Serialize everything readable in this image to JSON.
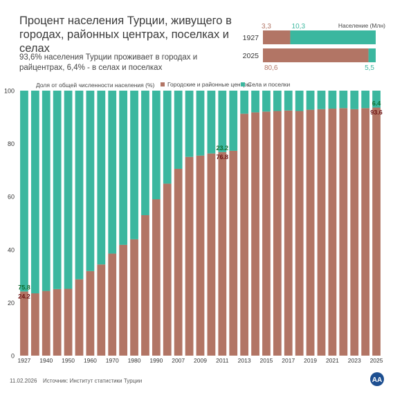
{
  "title": "Процент населения Турции, живущего в городах, районных центрах, поселках и селах",
  "subtitle": "93,6% населения Турции проживает в городах и райцентрах, 6,4% - в селах и поселках",
  "colors": {
    "urban": "#b27565",
    "rural": "#3bb79f"
  },
  "inset": {
    "unit_label": "Население (Млн)",
    "rows": [
      {
        "year": "1927",
        "urban_label": "3,3",
        "rural_label": "10,3",
        "urban": 3.3,
        "rural": 10.3
      },
      {
        "year": "2025",
        "urban_label": "80,6",
        "rural_label": "5,5",
        "urban": 80.6,
        "rural": 5.5
      }
    ]
  },
  "chart_data": {
    "type": "bar",
    "stacked": true,
    "ylabel": "Доля от общей численности населения (%)",
    "ylim": [
      0,
      100
    ],
    "yticks": [
      0,
      20,
      40,
      60,
      80,
      100
    ],
    "categories": [
      "1927",
      "1935",
      "1940",
      "1945",
      "1950",
      "1955",
      "1960",
      "1965",
      "1970",
      "1975",
      "1980",
      "1985",
      "1990",
      "2000",
      "2007",
      "2008",
      "2009",
      "2010",
      "2011",
      "2012",
      "2013",
      "2014",
      "2015",
      "2016",
      "2017",
      "2018",
      "2019",
      "2020",
      "2021",
      "2022",
      "2023",
      "2024",
      "2025"
    ],
    "x_tick_labels": [
      "1927",
      "1940",
      "1950",
      "1960",
      "1970",
      "1980",
      "1990",
      "2007",
      "2009",
      "2011",
      "2013",
      "2015",
      "2017",
      "2019",
      "2021",
      "2023",
      "2025"
    ],
    "series": [
      {
        "name": "Городские и районные центры",
        "values": [
          24.2,
          23.5,
          24.4,
          25.1,
          25.2,
          28.8,
          31.9,
          34.4,
          38.5,
          41.8,
          43.9,
          53.0,
          59.0,
          64.9,
          70.5,
          75.0,
          75.5,
          76.3,
          76.8,
          77.3,
          91.3,
          91.8,
          92.1,
          92.3,
          92.5,
          92.3,
          92.8,
          93.0,
          93.2,
          93.4,
          93.0,
          93.4,
          93.6
        ]
      },
      {
        "name": "Села и поселки",
        "values": [
          75.8,
          76.5,
          75.6,
          74.9,
          74.8,
          71.2,
          68.1,
          65.6,
          61.5,
          58.2,
          56.1,
          47.0,
          41.0,
          35.1,
          29.5,
          25.0,
          24.5,
          23.7,
          23.2,
          22.7,
          8.7,
          8.2,
          7.9,
          7.7,
          7.5,
          7.7,
          7.2,
          7.0,
          6.8,
          6.6,
          7.0,
          6.6,
          6.4
        ]
      }
    ],
    "annotations": [
      {
        "category": "1927",
        "urban_label": "24.2",
        "rural_label": "75.8"
      },
      {
        "category": "2011",
        "urban_label": "76.8",
        "rural_label": "23.2"
      },
      {
        "category": "2025",
        "urban_label": "93.6",
        "rural_label": "6.4"
      }
    ],
    "legend_position": "top"
  },
  "footer": {
    "date": "11.02.2026",
    "source": "Источник: Институт статистики Турции"
  },
  "logo_text": "AA"
}
